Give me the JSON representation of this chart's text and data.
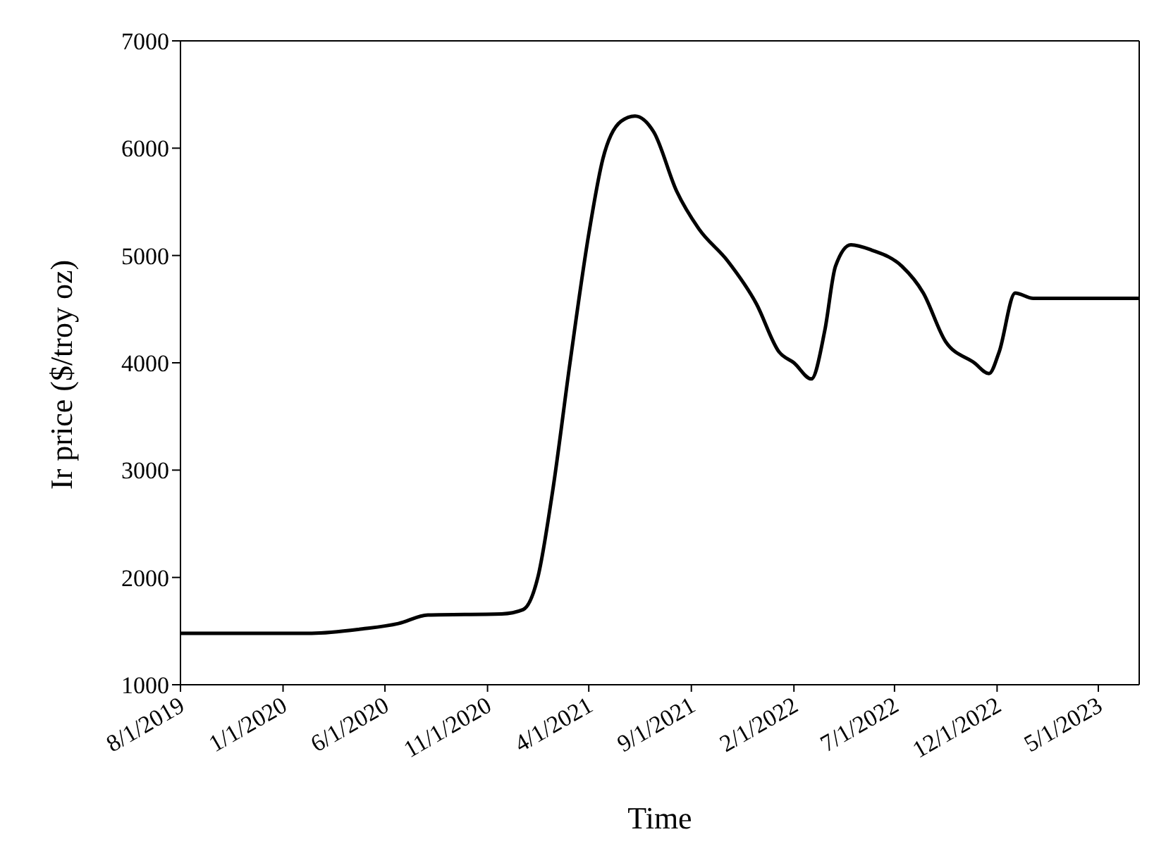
{
  "chart_data": {
    "type": "line",
    "xlabel": "Time",
    "ylabel": "Ir price ($/troy oz)",
    "x": [
      "2019-08-01",
      "2020-02-13",
      "2020-04-28",
      "2020-06-21",
      "2020-08-04",
      "2020-11-22",
      "2020-12-24",
      "2021-01-15",
      "2021-02-06",
      "2021-03-04",
      "2021-04-01",
      "2021-04-22",
      "2021-05-19",
      "2021-06-09",
      "2021-07-07",
      "2021-08-10",
      "2021-09-12",
      "2021-10-25",
      "2021-12-07",
      "2022-01-10",
      "2022-02-01",
      "2022-02-27",
      "2022-03-19",
      "2022-04-04",
      "2022-04-27",
      "2022-05-28",
      "2022-07-12",
      "2022-08-13",
      "2022-09-15",
      "2022-10-28",
      "2022-11-19",
      "2022-12-04",
      "2022-12-28",
      "2023-01-24",
      "2023-07-01"
    ],
    "series": [
      {
        "color": "#000000",
        "values": [
          1480,
          1480,
          1520,
          1570,
          1650,
          1660,
          1700,
          2000,
          2800,
          4000,
          5200,
          5900,
          6250,
          6300,
          6150,
          5600,
          5250,
          4950,
          4550,
          4100,
          4000,
          3850,
          4300,
          4900,
          5100,
          5050,
          4900,
          4650,
          4200,
          4000,
          3900,
          4100,
          4650,
          4600,
          4600
        ]
      }
    ],
    "xlim": [
      "2019-08-01",
      "2023-07-01"
    ],
    "xticks": [
      {
        "value": "2019-08-01",
        "label": "8/1/2019"
      },
      {
        "value": "2020-01-01",
        "label": "1/1/2020"
      },
      {
        "value": "2020-06-01",
        "label": "6/1/2020"
      },
      {
        "value": "2020-11-01",
        "label": "11/1/2020"
      },
      {
        "value": "2021-04-01",
        "label": "4/1/2021"
      },
      {
        "value": "2021-09-01",
        "label": "9/1/2021"
      },
      {
        "value": "2022-02-01",
        "label": "2/1/2022"
      },
      {
        "value": "2022-07-01",
        "label": "7/1/2022"
      },
      {
        "value": "2022-12-01",
        "label": "12/1/2022"
      },
      {
        "value": "2023-05-01",
        "label": "5/1/2023"
      }
    ],
    "ylim": [
      1000,
      7000
    ],
    "yticks": [
      1000,
      2000,
      3000,
      4000,
      5000,
      6000,
      7000
    ],
    "marker": "none",
    "line_style": "solid"
  }
}
